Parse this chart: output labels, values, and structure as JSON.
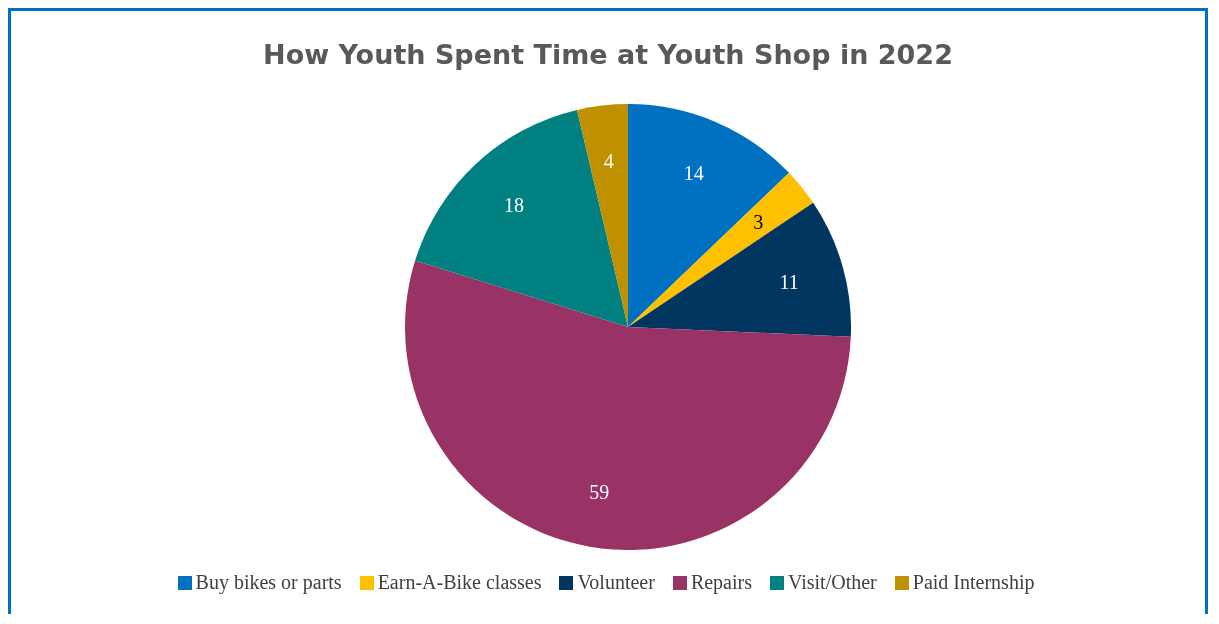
{
  "chart_data": {
    "type": "pie",
    "title": "How Youth Spent Time at Youth Shop in 2022",
    "categories": [
      "Buy bikes or parts",
      "Earn-A-Bike classes",
      "Volunteer",
      "Repairs",
      "Visit/Other",
      "Paid Internship"
    ],
    "values": [
      14,
      3,
      11,
      59,
      18,
      4
    ],
    "colors": [
      "#0070c0",
      "#ffc000",
      "#003660",
      "#993366",
      "#008080",
      "#bf9000"
    ],
    "data_labels": true,
    "legend": "bottom"
  }
}
